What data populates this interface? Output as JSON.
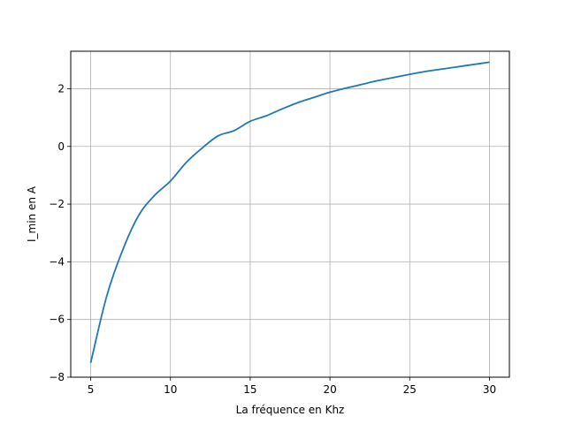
{
  "chart_data": {
    "type": "line",
    "xlabel": "La fréquence en Khz",
    "ylabel": "I_min en A",
    "xlim": [
      3.75,
      31.25
    ],
    "ylim": [
      -8,
      3.3
    ],
    "xticks": [
      5,
      10,
      15,
      20,
      25,
      30
    ],
    "yticks": [
      -8,
      -6,
      -4,
      -2,
      0,
      2
    ],
    "ytick_labels": [
      "−8",
      "−6",
      "−4",
      "−2",
      "0",
      "2"
    ],
    "grid": true,
    "series": [
      {
        "color": "#1f77b4",
        "x": [
          5,
          6,
          7,
          8,
          9,
          10,
          11,
          12,
          13,
          14,
          15,
          16,
          17,
          18,
          19,
          20,
          21,
          22,
          23,
          24,
          25,
          26,
          27,
          28,
          29,
          30
        ],
        "y": [
          -7.5,
          -5.2,
          -3.6,
          -2.4,
          -1.7,
          -1.2,
          -0.55,
          -0.05,
          0.37,
          0.55,
          0.87,
          1.06,
          1.3,
          1.52,
          1.7,
          1.88,
          2.02,
          2.15,
          2.28,
          2.39,
          2.5,
          2.6,
          2.68,
          2.76,
          2.84,
          2.92
        ]
      }
    ]
  }
}
